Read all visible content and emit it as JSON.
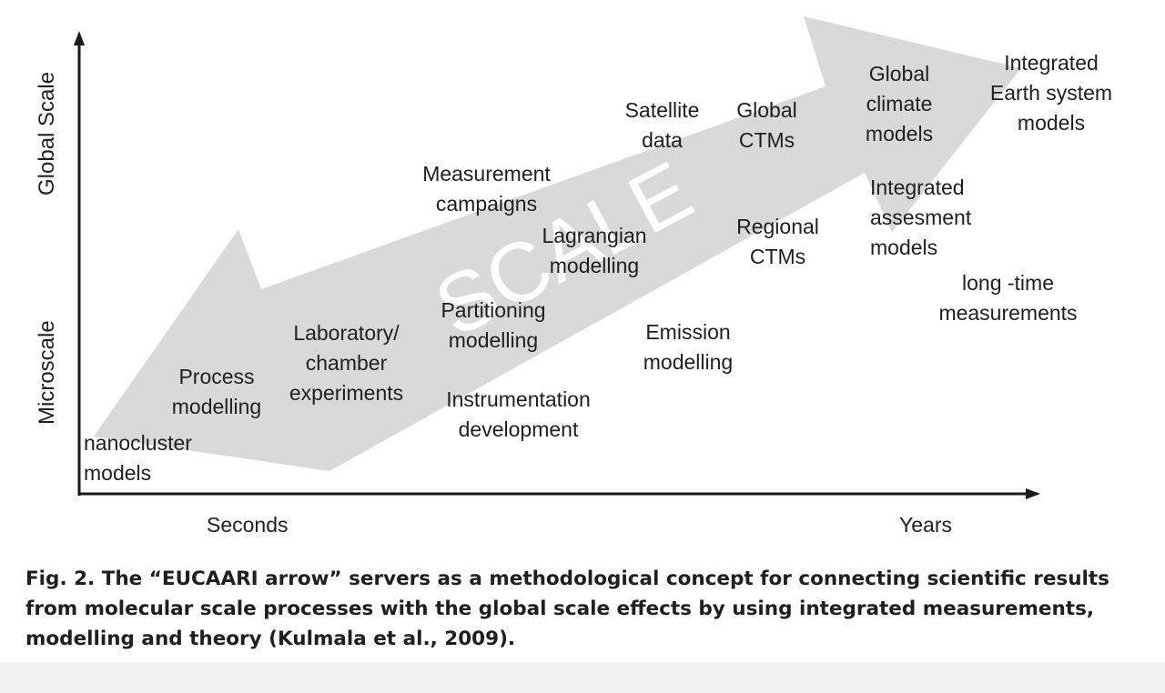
{
  "diagram": {
    "arrow_word": "SCALE",
    "y_axis": {
      "top_label": "Global Scale",
      "bottom_label": "Microscale"
    },
    "x_axis": {
      "left_label": "Seconds",
      "right_label": "Years"
    },
    "items": {
      "nanocluster_models": "nanocluster\nmodels",
      "process_modelling": "Process\nmodelling",
      "laboratory_chamber": "Laboratory/\nchamber\nexperiments",
      "partitioning_modelling": "Partitioning\nmodelling",
      "instrumentation_development": "Instrumentation\ndevelopment",
      "measurement_campaigns": "Measurement\ncampaigns",
      "lagrangian_modelling": "Lagrangian\nmodelling",
      "emission_modelling": "Emission\nmodelling",
      "satellite_data": "Satellite\ndata",
      "global_ctms": "Global\nCTMs",
      "regional_ctms": "Regional\nCTMs",
      "global_climate_models": "Global\nclimate\nmodels",
      "integrated_earth_system": "Integrated\nEarth system\nmodels",
      "integrated_assessment": "Integrated\nassesment\nmodels",
      "long_time_measurements": "long -time\nmeasurements"
    }
  },
  "caption": "Fig. 2. The “EUCAARI arrow” servers as a methodological concept for connecting scientific results from molecular scale processes with the global scale effects by using integrated measurements, modelling and theory (Kulmala et al., 2009).",
  "colors": {
    "arrow_fill": "#d9d9d9",
    "text": "#1f1f1f",
    "axis": "#1a1a1a"
  }
}
